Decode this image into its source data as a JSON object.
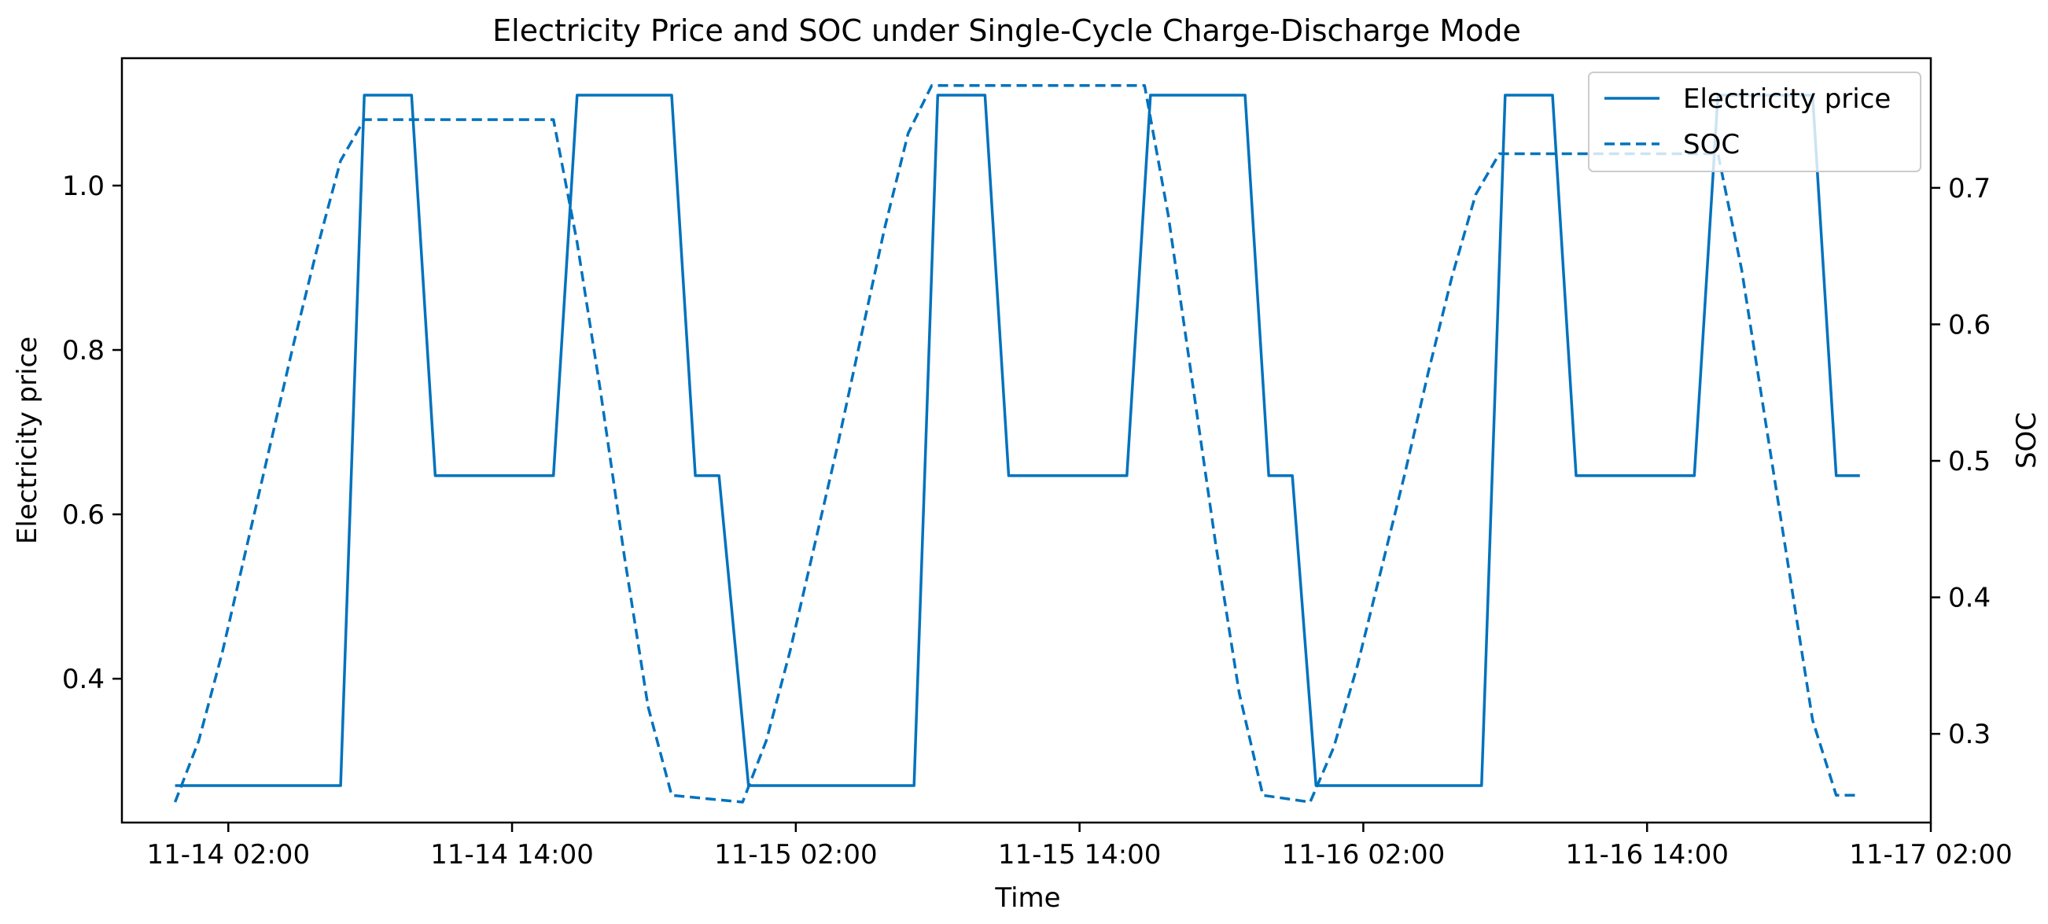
{
  "chart_data": {
    "type": "line",
    "title": "Electricity Price and SOC under Single-Cycle Charge-Discharge Mode",
    "xlabel": "Time",
    "ylabel_left": "Electricity price",
    "ylabel_right": "SOC",
    "grid": false,
    "legend_position": "top-right",
    "xlim": [
      "2024-11-13 21:30",
      "2024-11-17 02:00"
    ],
    "ylim_left": [
      0.225,
      1.155
    ],
    "ylim_right": [
      0.235,
      0.795
    ],
    "x_ticks": [
      {
        "at": "2024-11-14 02:00",
        "label": "11-14 02:00"
      },
      {
        "at": "2024-11-14 14:00",
        "label": "11-14 14:00"
      },
      {
        "at": "2024-11-15 02:00",
        "label": "11-15 02:00"
      },
      {
        "at": "2024-11-15 14:00",
        "label": "11-15 14:00"
      },
      {
        "at": "2024-11-16 02:00",
        "label": "11-16 02:00"
      },
      {
        "at": "2024-11-16 14:00",
        "label": "11-16 14:00"
      },
      {
        "at": "2024-11-17 02:00",
        "label": "11-17 02:00"
      }
    ],
    "y_ticks_left": [
      {
        "value": 0.4,
        "label": "0.4"
      },
      {
        "value": 0.6,
        "label": "0.6"
      },
      {
        "value": 0.8,
        "label": "0.8"
      },
      {
        "value": 1.0,
        "label": "1.0"
      }
    ],
    "y_ticks_right": [
      {
        "value": 0.3,
        "label": "0.3"
      },
      {
        "value": 0.4,
        "label": "0.4"
      },
      {
        "value": 0.5,
        "label": "0.5"
      },
      {
        "value": 0.6,
        "label": "0.6"
      },
      {
        "value": 0.7,
        "label": "0.7"
      }
    ],
    "series": [
      {
        "name": "Electricity price",
        "axis": "left",
        "style": "solid",
        "color": "#0072BD",
        "points": [
          [
            "2024-11-13 23:45",
            0.27
          ],
          [
            "2024-11-14 06:45",
            0.27
          ],
          [
            "2024-11-14 07:45",
            1.11
          ],
          [
            "2024-11-14 09:45",
            1.11
          ],
          [
            "2024-11-14 10:45",
            0.647
          ],
          [
            "2024-11-14 15:45",
            0.647
          ],
          [
            "2024-11-14 16:45",
            1.11
          ],
          [
            "2024-11-14 20:45",
            1.11
          ],
          [
            "2024-11-14 21:45",
            0.647
          ],
          [
            "2024-11-14 22:45",
            0.647
          ],
          [
            "2024-11-15 00:00",
            0.27
          ],
          [
            "2024-11-15 07:00",
            0.27
          ],
          [
            "2024-11-15 08:00",
            1.11
          ],
          [
            "2024-11-15 10:00",
            1.11
          ],
          [
            "2024-11-15 11:00",
            0.647
          ],
          [
            "2024-11-15 16:00",
            0.647
          ],
          [
            "2024-11-15 17:00",
            1.11
          ],
          [
            "2024-11-15 21:00",
            1.11
          ],
          [
            "2024-11-15 22:00",
            0.647
          ],
          [
            "2024-11-15 23:00",
            0.647
          ],
          [
            "2024-11-16 00:00",
            0.27
          ],
          [
            "2024-11-16 07:00",
            0.27
          ],
          [
            "2024-11-16 08:00",
            1.11
          ],
          [
            "2024-11-16 10:00",
            1.11
          ],
          [
            "2024-11-16 11:00",
            0.647
          ],
          [
            "2024-11-16 16:00",
            0.647
          ],
          [
            "2024-11-16 17:00",
            1.11
          ],
          [
            "2024-11-16 21:00",
            1.11
          ],
          [
            "2024-11-16 22:00",
            0.647
          ],
          [
            "2024-11-16 23:00",
            0.647
          ]
        ]
      },
      {
        "name": "SOC",
        "axis": "right",
        "style": "dashed",
        "color": "#0072BD",
        "points": [
          [
            "2024-11-13 23:45",
            0.25
          ],
          [
            "2024-11-14 00:45",
            0.295
          ],
          [
            "2024-11-14 01:45",
            0.36
          ],
          [
            "2024-11-14 02:45",
            0.435
          ],
          [
            "2024-11-14 03:45",
            0.51
          ],
          [
            "2024-11-14 04:45",
            0.585
          ],
          [
            "2024-11-14 05:45",
            0.655
          ],
          [
            "2024-11-14 06:45",
            0.72
          ],
          [
            "2024-11-14 07:45",
            0.75
          ],
          [
            "2024-11-14 15:45",
            0.75
          ],
          [
            "2024-11-14 16:45",
            0.66
          ],
          [
            "2024-11-14 17:45",
            0.55
          ],
          [
            "2024-11-14 18:45",
            0.43
          ],
          [
            "2024-11-14 19:45",
            0.32
          ],
          [
            "2024-11-14 20:45",
            0.255
          ],
          [
            "2024-11-14 23:45",
            0.25
          ],
          [
            "2024-11-15 00:45",
            0.295
          ],
          [
            "2024-11-15 01:45",
            0.36
          ],
          [
            "2024-11-15 02:45",
            0.435
          ],
          [
            "2024-11-15 03:45",
            0.51
          ],
          [
            "2024-11-15 04:45",
            0.59
          ],
          [
            "2024-11-15 05:45",
            0.67
          ],
          [
            "2024-11-15 06:45",
            0.74
          ],
          [
            "2024-11-15 07:45",
            0.775
          ],
          [
            "2024-11-15 16:45",
            0.775
          ],
          [
            "2024-11-15 17:45",
            0.68
          ],
          [
            "2024-11-15 18:45",
            0.56
          ],
          [
            "2024-11-15 19:45",
            0.44
          ],
          [
            "2024-11-15 20:45",
            0.33
          ],
          [
            "2024-11-15 21:45",
            0.255
          ],
          [
            "2024-11-15 23:45",
            0.25
          ],
          [
            "2024-11-16 00:45",
            0.29
          ],
          [
            "2024-11-16 01:45",
            0.35
          ],
          [
            "2024-11-16 02:45",
            0.42
          ],
          [
            "2024-11-16 03:45",
            0.49
          ],
          [
            "2024-11-16 04:45",
            0.565
          ],
          [
            "2024-11-16 05:45",
            0.635
          ],
          [
            "2024-11-16 06:45",
            0.695
          ],
          [
            "2024-11-16 07:45",
            0.725
          ],
          [
            "2024-11-16 17:00",
            0.725
          ],
          [
            "2024-11-16 18:00",
            0.64
          ],
          [
            "2024-11-16 19:00",
            0.53
          ],
          [
            "2024-11-16 20:00",
            0.42
          ],
          [
            "2024-11-16 21:00",
            0.31
          ],
          [
            "2024-11-16 22:00",
            0.255
          ],
          [
            "2024-11-16 23:00",
            0.255
          ]
        ]
      }
    ]
  }
}
